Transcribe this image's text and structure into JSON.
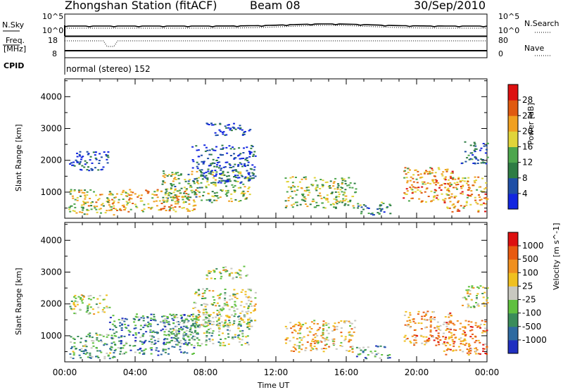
{
  "header": {
    "title": "Zhongshan Station (fitACF)",
    "beam": "Beam 08",
    "date": "30/Sep/2010"
  },
  "top_panels": {
    "nsky_label": "N.Sky",
    "nsky_ticks": [
      "10^5",
      "10^0"
    ],
    "nsearch_label": "N.Search",
    "freq_label": "Freq.",
    "freq_unit": "[MHz]",
    "freq_ticks": [
      "18",
      "8"
    ],
    "nave_ticks": [
      "80",
      "0"
    ],
    "nave_label": "Nave",
    "cpid_label": "CPID",
    "cpid_value": "normal (stereo) 152"
  },
  "colors": {
    "power_scale": [
      "#1226e0",
      "#1f4fa6",
      "#2e7c44",
      "#4da64d",
      "#e0d43a",
      "#f0a020",
      "#e05a10",
      "#dd1010"
    ],
    "velocity_scale": [
      "#2030c0",
      "#2e6aa0",
      "#3a8c5a",
      "#60c040",
      "#c8c8c0",
      "#f0c020",
      "#f09020",
      "#e85a10",
      "#dd1010"
    ]
  },
  "chart_data": [
    {
      "type": "heatmap",
      "quantity": "Power",
      "ylabel": "Slant Range [km]",
      "xlabel": "Time UT",
      "x_ticks": [
        "00:00",
        "04:00",
        "08:00",
        "12:00",
        "16:00",
        "20:00",
        "00:00"
      ],
      "y_ticks": [
        "1000",
        "2000",
        "3000",
        "4000"
      ],
      "ylim": [
        180,
        4560
      ],
      "xlim_hours": [
        0,
        24
      ],
      "colorbar": {
        "label": "Power [dB]",
        "ticks": [
          "4",
          "8",
          "12",
          "16",
          "20",
          "24",
          "28"
        ],
        "range": [
          0,
          32
        ]
      },
      "echo_regions": [
        {
          "t0": 0.2,
          "t1": 2.8,
          "r0": 300,
          "r1": 1100,
          "level": 0.55
        },
        {
          "t0": 0.2,
          "t1": 2.5,
          "r0": 1700,
          "r1": 2300,
          "level": 0.15
        },
        {
          "t0": 2.5,
          "t1": 7.5,
          "r0": 400,
          "r1": 1100,
          "level": 0.65
        },
        {
          "t0": 5.5,
          "t1": 10.5,
          "r0": 700,
          "r1": 1700,
          "level": 0.45
        },
        {
          "t0": 7.2,
          "t1": 10.8,
          "r0": 1300,
          "r1": 2500,
          "level": 0.15
        },
        {
          "t0": 8.0,
          "t1": 10.5,
          "r0": 2800,
          "r1": 3200,
          "level": 0.12
        },
        {
          "t0": 12.5,
          "t1": 16.5,
          "r0": 500,
          "r1": 1500,
          "level": 0.5
        },
        {
          "t0": 16.5,
          "t1": 18.5,
          "r0": 300,
          "r1": 700,
          "level": 0.3
        },
        {
          "t0": 19.2,
          "t1": 22.0,
          "r0": 700,
          "r1": 1800,
          "level": 0.7
        },
        {
          "t0": 21.5,
          "t1": 24.0,
          "r0": 400,
          "r1": 1500,
          "level": 0.7
        },
        {
          "t0": 22.5,
          "t1": 24.0,
          "r0": 1900,
          "r1": 2600,
          "level": 0.25
        }
      ]
    },
    {
      "type": "heatmap",
      "quantity": "Velocity",
      "ylabel": "Slant Range [km]",
      "xlabel": "Time UT",
      "x_ticks": [
        "00:00",
        "04:00",
        "08:00",
        "12:00",
        "16:00",
        "20:00",
        "00:00"
      ],
      "y_ticks": [
        "1000",
        "2000",
        "3000",
        "4000"
      ],
      "ylim": [
        180,
        4560
      ],
      "xlim_hours": [
        0,
        24
      ],
      "colorbar": {
        "label": "Velocity [m s^-1]",
        "ticks": [
          "1000",
          "500",
          "100",
          "25",
          "-25",
          "-100",
          "-500",
          "-1000"
        ],
        "range": [
          -1000,
          1000
        ]
      },
      "echo_regions": [
        {
          "t0": 0.2,
          "t1": 2.8,
          "r0": 300,
          "r1": 1100,
          "level": 0.35
        },
        {
          "t0": 0.2,
          "t1": 2.5,
          "r0": 1700,
          "r1": 2300,
          "level": 0.5
        },
        {
          "t0": 2.5,
          "t1": 7.5,
          "r0": 400,
          "r1": 1700,
          "level": 0.25
        },
        {
          "t0": 5.5,
          "t1": 10.5,
          "r0": 700,
          "r1": 1700,
          "level": 0.4
        },
        {
          "t0": 7.2,
          "t1": 10.8,
          "r0": 1300,
          "r1": 2500,
          "level": 0.5
        },
        {
          "t0": 8.0,
          "t1": 10.5,
          "r0": 2800,
          "r1": 3200,
          "level": 0.5
        },
        {
          "t0": 12.5,
          "t1": 16.5,
          "r0": 500,
          "r1": 1500,
          "level": 0.6
        },
        {
          "t0": 16.5,
          "t1": 18.5,
          "r0": 300,
          "r1": 700,
          "level": 0.3
        },
        {
          "t0": 19.2,
          "t1": 22.0,
          "r0": 700,
          "r1": 1800,
          "level": 0.7
        },
        {
          "t0": 21.5,
          "t1": 24.0,
          "r0": 400,
          "r1": 1500,
          "level": 0.75
        },
        {
          "t0": 22.5,
          "t1": 24.0,
          "r0": 1900,
          "r1": 2600,
          "level": 0.5
        }
      ]
    }
  ]
}
